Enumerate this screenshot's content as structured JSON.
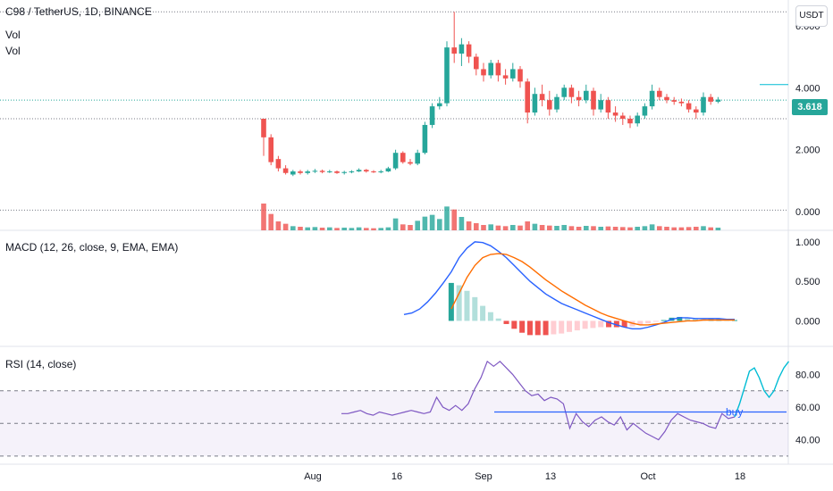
{
  "header": {
    "symbol": "C98 / TetherUS, 1D, BINANCE",
    "vol_label_1": "Vol",
    "vol_label_2": "Vol",
    "currency": "USDT",
    "last_price": "3.618"
  },
  "colors": {
    "up": "#26a69a",
    "down": "#ef5350",
    "macd": "#2962ff",
    "signal": "#ff6d00",
    "rsi": "#7e57c2",
    "rsi_projection": "#00bcd4",
    "annotation": "#2962ff",
    "band": "#7e57c2"
  },
  "chart_data": [
    {
      "type": "candlestick",
      "title": "C98 / TetherUS, 1D, BINANCE",
      "ylim": [
        -0.6,
        6.6
      ],
      "y_ticks": [
        "6.000",
        "4.000",
        "2.000",
        "0.000"
      ],
      "x_ticks": [
        "Aug",
        "16",
        "Sep",
        "13",
        "Oct",
        "18"
      ],
      "last_price": 3.618,
      "horizontal_levels": [
        6.45,
        3.6,
        3.0,
        0.05
      ],
      "candles": [
        [
          3.0,
          2.4,
          3.0,
          1.8
        ],
        [
          2.4,
          1.6,
          2.5,
          1.5
        ],
        [
          1.7,
          1.4,
          1.8,
          1.3
        ],
        [
          1.4,
          1.25,
          1.5,
          1.2
        ],
        [
          1.2,
          1.3,
          1.35,
          1.15
        ],
        [
          1.3,
          1.25,
          1.35,
          1.2
        ],
        [
          1.25,
          1.3,
          1.35,
          1.2
        ],
        [
          1.3,
          1.32,
          1.38,
          1.25
        ],
        [
          1.32,
          1.28,
          1.36,
          1.24
        ],
        [
          1.28,
          1.3,
          1.35,
          1.25
        ],
        [
          1.3,
          1.25,
          1.33,
          1.22
        ],
        [
          1.25,
          1.28,
          1.32,
          1.2
        ],
        [
          1.28,
          1.3,
          1.34,
          1.24
        ],
        [
          1.3,
          1.35,
          1.4,
          1.28
        ],
        [
          1.35,
          1.3,
          1.38,
          1.26
        ],
        [
          1.3,
          1.28,
          1.34,
          1.25
        ],
        [
          1.28,
          1.3,
          1.35,
          1.24
        ],
        [
          1.3,
          1.4,
          1.45,
          1.28
        ],
        [
          1.4,
          1.9,
          2.0,
          1.35
        ],
        [
          1.9,
          1.6,
          1.95,
          1.55
        ],
        [
          1.6,
          1.55,
          1.7,
          1.5
        ],
        [
          1.55,
          1.9,
          2.0,
          1.5
        ],
        [
          1.9,
          2.8,
          2.9,
          1.85
        ],
        [
          2.8,
          3.4,
          3.5,
          2.7
        ],
        [
          3.4,
          3.5,
          3.7,
          3.3
        ],
        [
          3.5,
          5.3,
          5.5,
          3.4
        ],
        [
          5.3,
          5.1,
          6.45,
          4.8
        ],
        [
          5.1,
          5.4,
          5.6,
          4.7
        ],
        [
          5.4,
          5.0,
          5.5,
          4.8
        ],
        [
          5.0,
          4.6,
          5.1,
          4.4
        ],
        [
          4.6,
          4.4,
          4.8,
          4.2
        ],
        [
          4.4,
          4.8,
          4.9,
          4.3
        ],
        [
          4.8,
          4.4,
          4.9,
          4.2
        ],
        [
          4.4,
          4.3,
          4.6,
          4.1
        ],
        [
          4.3,
          4.6,
          4.8,
          4.2
        ],
        [
          4.6,
          4.2,
          4.7,
          4.0
        ],
        [
          4.2,
          3.2,
          4.3,
          2.85
        ],
        [
          3.2,
          3.8,
          4.0,
          3.1
        ],
        [
          3.8,
          3.6,
          4.1,
          3.4
        ],
        [
          3.6,
          3.3,
          3.9,
          3.1
        ],
        [
          3.3,
          3.7,
          3.8,
          3.2
        ],
        [
          3.7,
          4.0,
          4.1,
          3.6
        ],
        [
          4.0,
          3.7,
          4.1,
          3.5
        ],
        [
          3.7,
          3.6,
          3.9,
          3.4
        ],
        [
          3.6,
          3.9,
          4.1,
          3.5
        ],
        [
          3.9,
          3.3,
          4.0,
          3.1
        ],
        [
          3.3,
          3.6,
          3.8,
          3.2
        ],
        [
          3.6,
          3.2,
          3.7,
          3.0
        ],
        [
          3.2,
          3.1,
          3.4,
          2.9
        ],
        [
          3.1,
          3.0,
          3.2,
          2.8
        ],
        [
          3.0,
          2.85,
          3.1,
          2.7
        ],
        [
          2.85,
          3.1,
          3.2,
          2.75
        ],
        [
          3.1,
          3.4,
          3.5,
          3.0
        ],
        [
          3.4,
          3.9,
          4.1,
          3.3
        ],
        [
          3.9,
          3.7,
          4.0,
          3.6
        ],
        [
          3.7,
          3.6,
          3.8,
          3.5
        ],
        [
          3.6,
          3.55,
          3.7,
          3.45
        ],
        [
          3.55,
          3.5,
          3.65,
          3.4
        ],
        [
          3.5,
          3.3,
          3.6,
          3.2
        ],
        [
          3.3,
          3.2,
          3.4,
          3.0
        ],
        [
          3.2,
          3.7,
          3.85,
          3.1
        ],
        [
          3.7,
          3.55,
          3.8,
          3.45
        ],
        [
          3.55,
          3.618,
          3.7,
          3.5
        ]
      ]
    },
    {
      "type": "bar",
      "title": "Vol",
      "values": [
        90,
        55,
        30,
        22,
        14,
        12,
        10,
        11,
        9,
        10,
        8,
        9,
        8,
        10,
        8,
        7,
        8,
        10,
        40,
        20,
        18,
        32,
        46,
        52,
        38,
        80,
        70,
        45,
        30,
        24,
        18,
        20,
        16,
        14,
        18,
        16,
        30,
        22,
        18,
        16,
        15,
        18,
        14,
        12,
        15,
        14,
        12,
        13,
        12,
        11,
        10,
        12,
        14,
        20,
        14,
        12,
        10,
        10,
        11,
        12,
        14,
        10,
        9
      ]
    },
    {
      "type": "line",
      "title": "MACD (12, 26, close, 9, EMA, EMA)",
      "ylim": [
        -0.3,
        1.1
      ],
      "y_ticks": [
        "1.000",
        "0.500",
        "0.000"
      ],
      "series": [
        {
          "name": "MACD",
          "values": [
            0.08,
            0.1,
            0.15,
            0.24,
            0.35,
            0.48,
            0.62,
            0.8,
            0.92,
            1.0,
            0.99,
            0.95,
            0.88,
            0.8,
            0.7,
            0.6,
            0.5,
            0.42,
            0.34,
            0.28,
            0.22,
            0.18,
            0.14,
            0.1,
            0.06,
            0.02,
            -0.02,
            -0.05,
            -0.08,
            -0.1,
            -0.1,
            -0.08,
            -0.05,
            -0.02,
            0.02,
            0.04,
            0.04,
            0.03,
            0.03,
            0.03,
            0.03,
            0.02,
            0.02
          ]
        },
        {
          "name": "Signal",
          "values": [
            null,
            null,
            null,
            null,
            null,
            null,
            0.15,
            0.35,
            0.55,
            0.7,
            0.8,
            0.84,
            0.85,
            0.84,
            0.8,
            0.75,
            0.68,
            0.6,
            0.52,
            0.45,
            0.38,
            0.32,
            0.26,
            0.2,
            0.15,
            0.1,
            0.06,
            0.03,
            0.0,
            -0.03,
            -0.05,
            -0.05,
            -0.04,
            -0.03,
            -0.02,
            -0.01,
            0.0,
            0.0,
            0.01,
            0.01,
            0.01,
            0.01,
            0.01
          ]
        },
        {
          "name": "Histogram",
          "values": [
            null,
            null,
            null,
            null,
            null,
            null,
            0.48,
            0.45,
            0.38,
            0.3,
            0.19,
            0.11,
            0.03,
            -0.04,
            -0.1,
            -0.15,
            -0.18,
            -0.18,
            -0.18,
            -0.17,
            -0.16,
            -0.14,
            -0.12,
            -0.1,
            -0.09,
            -0.08,
            -0.08,
            -0.08,
            -0.08,
            -0.07,
            -0.05,
            -0.03,
            -0.01,
            0.01,
            0.04,
            0.05,
            0.04,
            0.03,
            0.02,
            0.02,
            0.02,
            0.01,
            0.01
          ]
        }
      ]
    },
    {
      "type": "line",
      "title": "RSI (14, close)",
      "ylim": [
        25,
        95
      ],
      "y_ticks": [
        "80.00",
        "60.00",
        "40.00"
      ],
      "band": [
        30,
        70
      ],
      "middle": 50,
      "series": [
        {
          "name": "RSI",
          "values": [
            56,
            56,
            57,
            58,
            56,
            55,
            57,
            56,
            55,
            56,
            57,
            58,
            57,
            56,
            57,
            66,
            60,
            58,
            61,
            58,
            62,
            71,
            78,
            88,
            85,
            88,
            84,
            80,
            75,
            70,
            67,
            68,
            64,
            66,
            65,
            62,
            47,
            56,
            51,
            48,
            52,
            54,
            51,
            49,
            54,
            46,
            50,
            47,
            44,
            42,
            40,
            45,
            52,
            56,
            54,
            52,
            51,
            50,
            48,
            47,
            56,
            53,
            54
          ]
        },
        {
          "name": "RSI projection",
          "values": [
            54,
            62,
            72,
            82,
            84,
            78,
            70,
            66,
            70,
            78,
            84,
            88
          ]
        }
      ],
      "annotations": [
        {
          "type": "hline",
          "value": 57,
          "label": "buy"
        }
      ]
    }
  ]
}
